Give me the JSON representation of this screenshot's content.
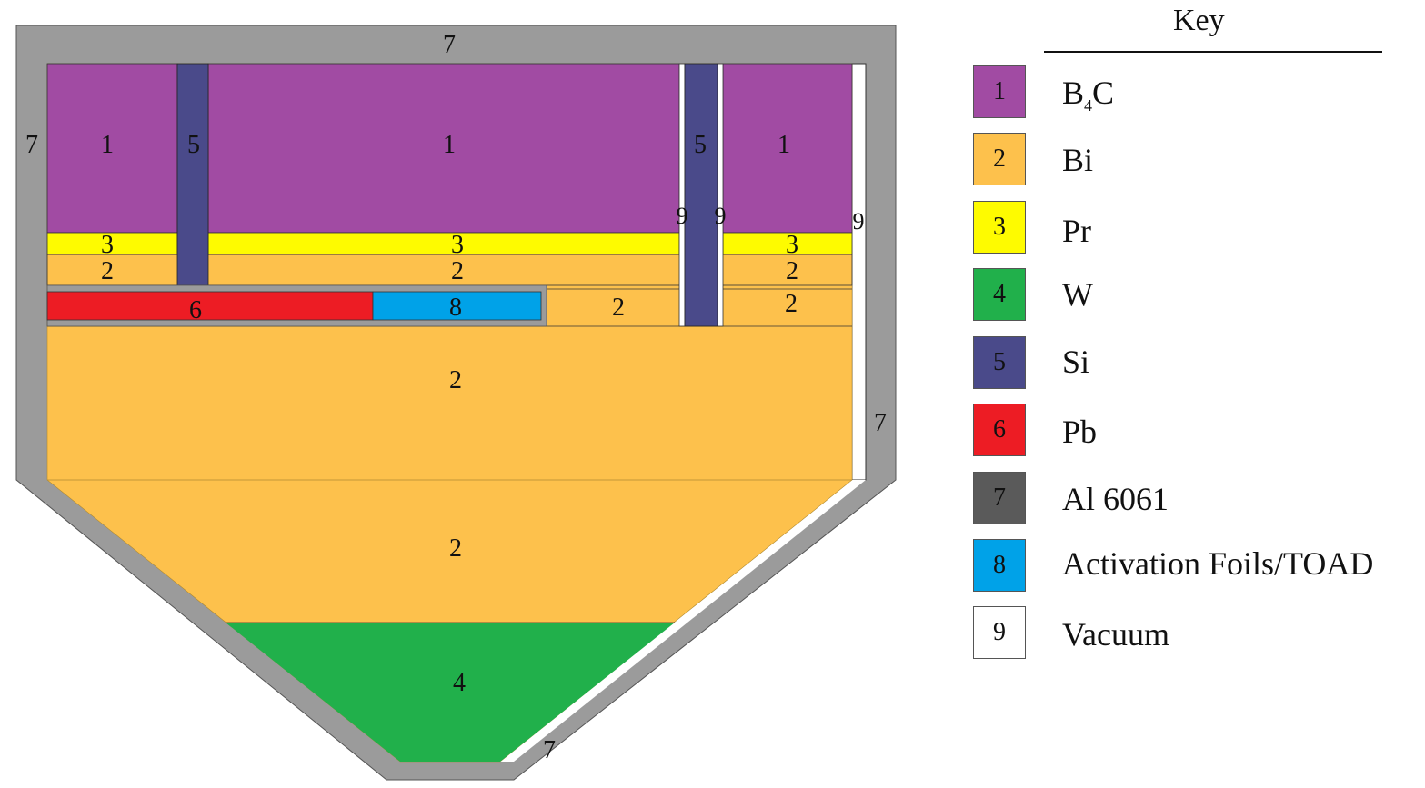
{
  "materials": {
    "m1": {
      "number": "1",
      "name": "B",
      "sub": "4",
      "name_end": "C",
      "color": "#a14ba3"
    },
    "m2": {
      "number": "2",
      "name": "Bi",
      "color": "#fdc14c"
    },
    "m3": {
      "number": "3",
      "name": "Pr",
      "color": "#fefb00"
    },
    "m4": {
      "number": "4",
      "name": "W",
      "color": "#21b04b"
    },
    "m5": {
      "number": "5",
      "name": "Si",
      "color": "#4a4a8a"
    },
    "m6": {
      "number": "6",
      "name": "Pb",
      "color": "#ed1c24"
    },
    "m7": {
      "number": "7",
      "name": "Al 6061",
      "color": "#5a5a5a",
      "diagram_color": "#9b9b9b"
    },
    "m8": {
      "number": "8",
      "name": "Activation Foils/TOAD",
      "color": "#00a2e8"
    },
    "m9": {
      "number": "9",
      "name": "Vacuum",
      "color": "#ffffff"
    }
  },
  "key": {
    "title": "Key"
  }
}
